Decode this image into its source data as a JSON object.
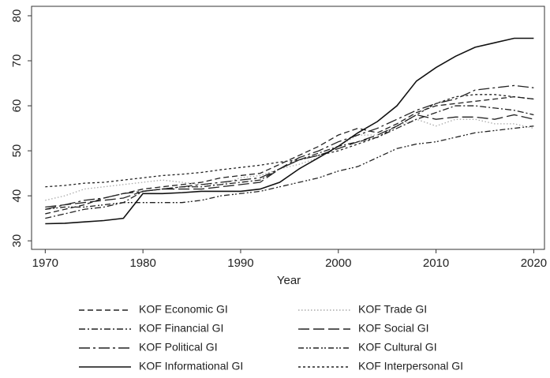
{
  "chart_data": {
    "type": "line",
    "x_label": "Year",
    "x": [
      1970,
      1972,
      1974,
      1976,
      1978,
      1980,
      1982,
      1984,
      1986,
      1988,
      1990,
      1992,
      1994,
      1996,
      1998,
      2000,
      2002,
      2004,
      2006,
      2008,
      2010,
      2012,
      2014,
      2016,
      2018,
      2020
    ],
    "xlim": [
      1968.6,
      2021.1
    ],
    "xticks": [
      1970,
      1980,
      1990,
      2000,
      2010,
      2020
    ],
    "ylim": [
      28.1,
      82.1
    ],
    "yticks": [
      30,
      40,
      50,
      60,
      70,
      80
    ],
    "legend": "bottom",
    "series": [
      {
        "name": "KOF Economic GI",
        "color": "#222222",
        "dash": "7 4",
        "values": [
          36,
          37,
          38,
          39.5,
          40.5,
          41.5,
          42,
          42.5,
          43,
          44,
          44.5,
          45,
          47,
          49,
          51,
          53.5,
          55,
          54,
          56,
          58.5,
          60,
          60.5,
          61,
          61.5,
          62,
          61.5
        ]
      },
      {
        "name": "KOF Trade GI",
        "color": "#aaaaaa",
        "dash": "1.5 2.5",
        "values": [
          39,
          40,
          41.5,
          42,
          42.5,
          43,
          43.5,
          43,
          42.5,
          42.5,
          44,
          44.5,
          46,
          47,
          48.5,
          51,
          53.5,
          53.5,
          55.5,
          57,
          55.5,
          57,
          57,
          56,
          56,
          55
        ]
      },
      {
        "name": "KOF Financial GI",
        "color": "#222222",
        "dash": "8 3 2 3",
        "values": [
          35,
          36,
          37,
          37.5,
          38.5,
          41,
          41.5,
          42,
          42,
          42.5,
          43,
          43.5,
          46,
          48,
          49.5,
          51,
          52,
          53,
          55,
          57,
          58.5,
          60,
          60,
          59.5,
          59,
          58
        ]
      },
      {
        "name": "KOF Social GI",
        "color": "#222222",
        "dash": "14 5",
        "values": [
          37.5,
          38,
          38.5,
          39,
          39.5,
          41,
          41.5,
          41.5,
          41.5,
          42,
          42.5,
          43,
          46,
          48,
          49,
          50.5,
          52,
          53.5,
          55.5,
          58,
          57,
          57.5,
          57.5,
          57,
          58,
          57
        ]
      },
      {
        "name": "KOF Political GI",
        "color": "#222222",
        "dash": "14 4 3 4",
        "values": [
          37,
          38,
          39,
          39.5,
          40.5,
          41,
          41.5,
          42,
          42.5,
          43,
          43.5,
          44,
          46,
          48.5,
          50,
          52,
          53.5,
          55,
          57,
          59,
          60.5,
          61.5,
          63.5,
          64,
          64.5,
          64
        ]
      },
      {
        "name": "KOF Cultural GI",
        "color": "#222222",
        "dash": "7 3 2 2 2 3",
        "values": [
          37,
          37.5,
          37.5,
          38,
          38.5,
          38.5,
          38.5,
          38.5,
          39,
          40,
          40.5,
          41,
          42,
          43,
          44,
          45.5,
          46.5,
          48.5,
          50.5,
          51.5,
          52,
          53,
          54,
          54.5,
          55,
          55.5
        ]
      },
      {
        "name": "KOF Informational GI",
        "color": "#111111",
        "dash": "none",
        "values": [
          33.8,
          33.9,
          34.2,
          34.5,
          35,
          40.5,
          40.5,
          40.7,
          41,
          41,
          41,
          41.5,
          43,
          46,
          48.5,
          51,
          54,
          56.5,
          60,
          65.5,
          68.5,
          71,
          73,
          74,
          75,
          75
        ]
      },
      {
        "name": "KOF Interpersonal GI",
        "color": "#222222",
        "dash": "3 3",
        "values": [
          42,
          42.3,
          42.8,
          43,
          43.5,
          44,
          44.5,
          44.8,
          45.2,
          45.8,
          46.3,
          46.8,
          47.5,
          48,
          49,
          50,
          51.5,
          53,
          55.5,
          58,
          60.5,
          62,
          62.5,
          62.5,
          62,
          61.5
        ]
      }
    ]
  }
}
